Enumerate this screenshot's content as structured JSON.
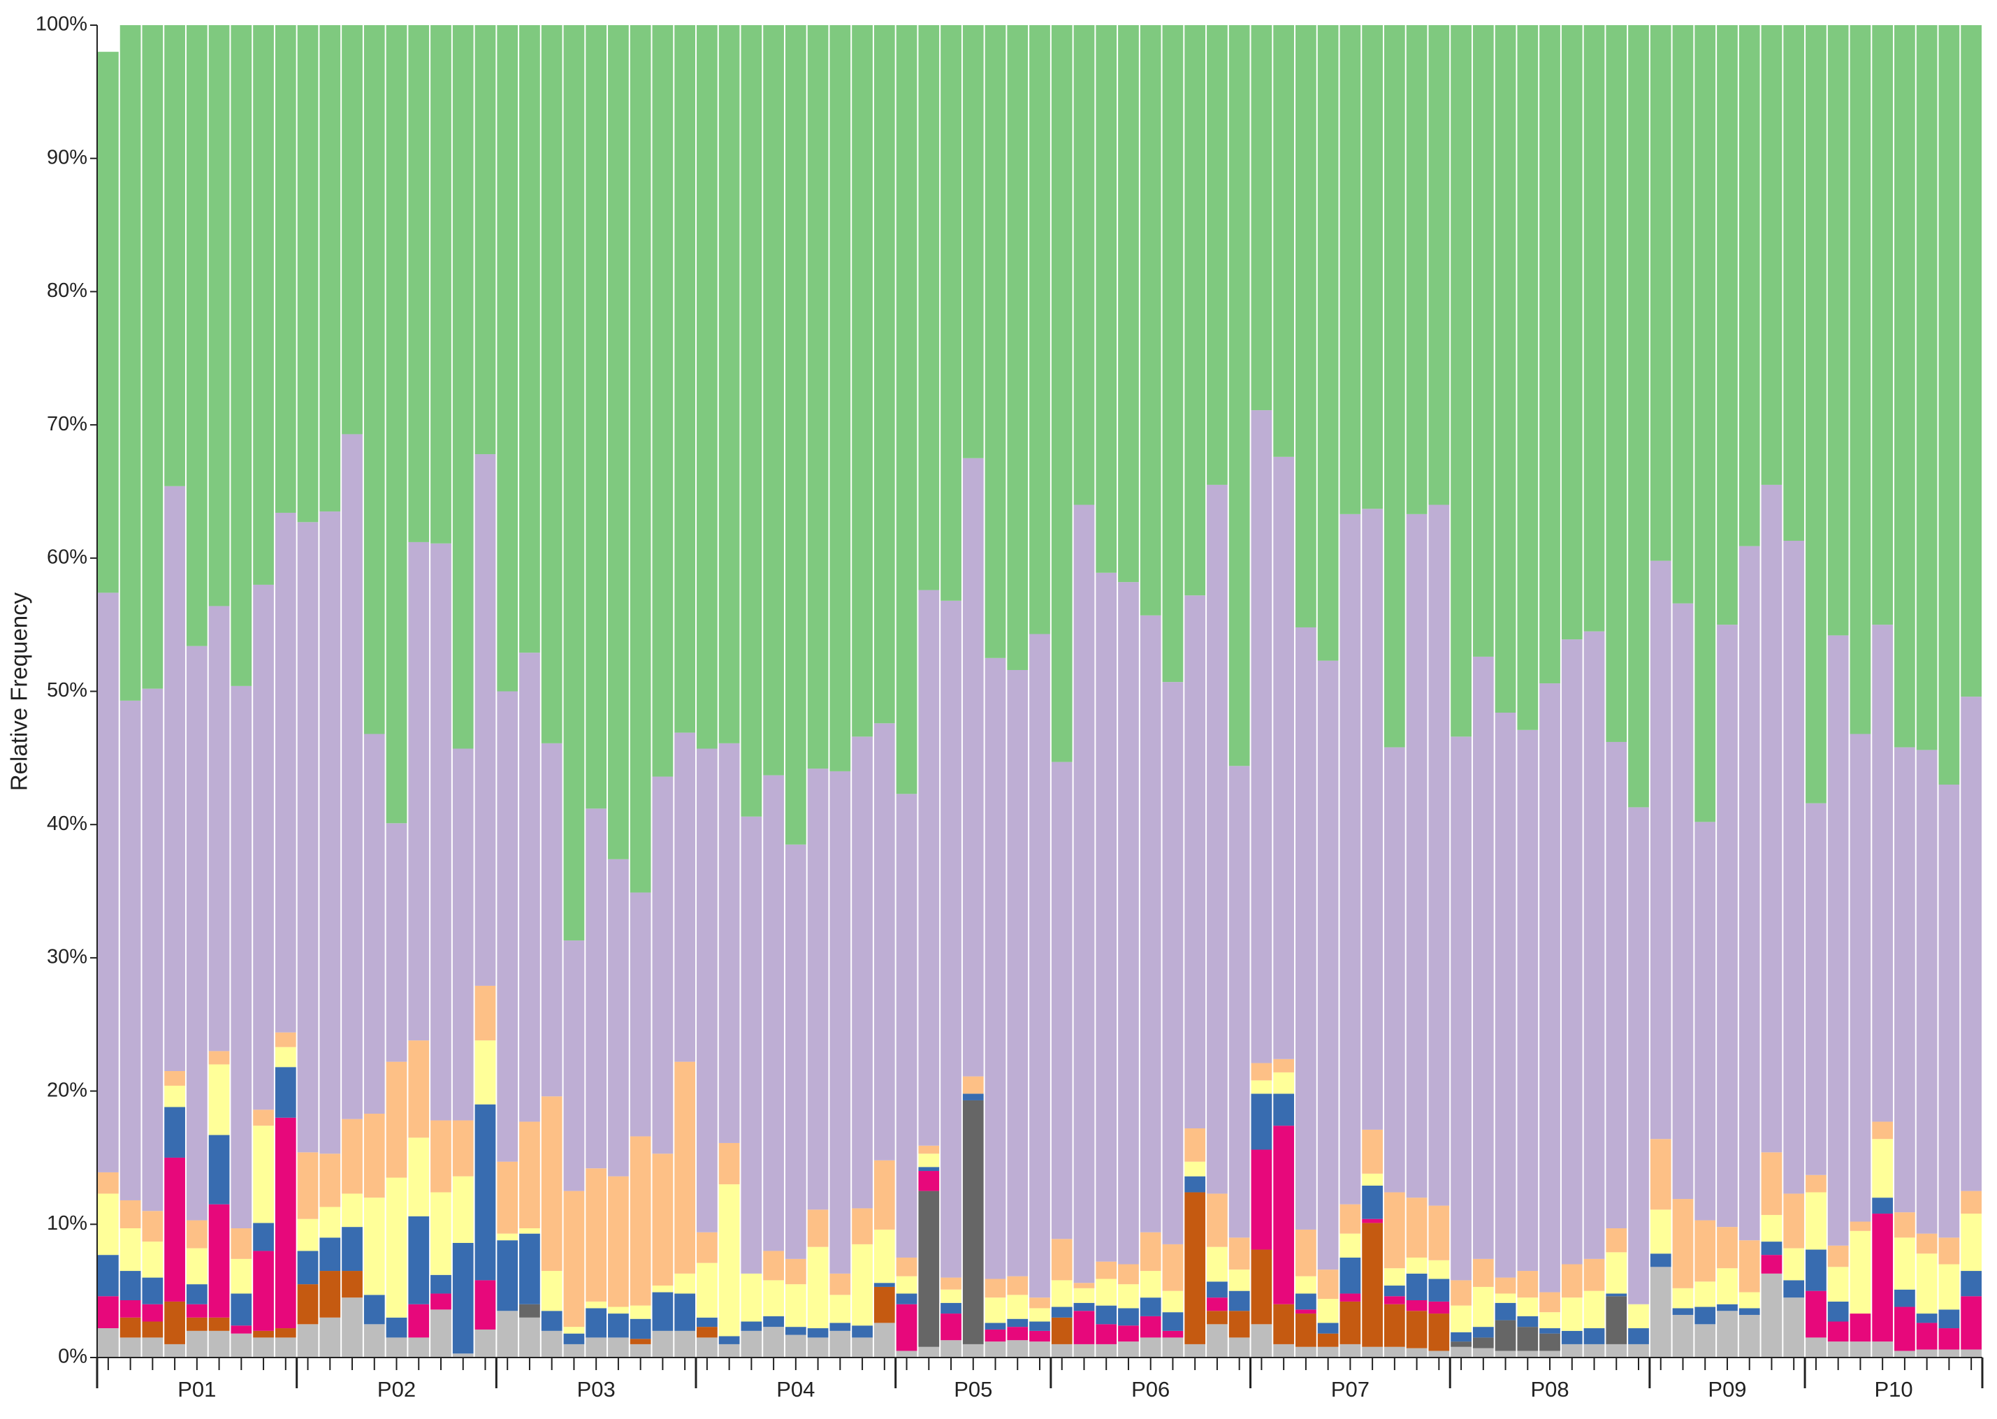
{
  "chart_data": {
    "type": "stacked_bar",
    "ylabel": "Relative Frequency",
    "ylim": [
      0,
      100
    ],
    "yticks": [
      {
        "value": 0,
        "label": "0%"
      },
      {
        "value": 10,
        "label": "10%"
      },
      {
        "value": 20,
        "label": "20%"
      },
      {
        "value": 30,
        "label": "30%"
      },
      {
        "value": 40,
        "label": "40%"
      },
      {
        "value": 50,
        "label": "50%"
      },
      {
        "value": 60,
        "label": "60%"
      },
      {
        "value": 70,
        "label": "70%"
      },
      {
        "value": 80,
        "label": "80%"
      },
      {
        "value": 90,
        "label": "90%"
      },
      {
        "value": 100,
        "label": "100%"
      }
    ],
    "groups": [
      {
        "label": "P01",
        "size": 9
      },
      {
        "label": "P02",
        "size": 9
      },
      {
        "label": "P03",
        "size": 9
      },
      {
        "label": "P04",
        "size": 9
      },
      {
        "label": "P05",
        "size": 7
      },
      {
        "label": "P06",
        "size": 9
      },
      {
        "label": "P07",
        "size": 9
      },
      {
        "label": "P08",
        "size": 9
      },
      {
        "label": "P09",
        "size": 7
      },
      {
        "label": "P10",
        "size": 8
      }
    ],
    "series": [
      {
        "color": "#bdbdbd",
        "values": [
          2.2,
          1.5,
          1.5,
          1.0,
          2.0,
          2.0,
          1.8,
          1.5,
          1.5,
          2.5,
          3.0,
          4.5,
          2.5,
          1.5,
          1.5,
          3.6,
          0.3,
          2.1,
          3.5,
          3.0,
          2.0,
          1.0,
          1.5,
          1.5,
          1.0,
          2.0,
          2.0,
          1.5,
          1.0,
          2.0,
          2.3,
          1.7,
          1.5,
          2.0,
          1.5,
          2.6,
          0.5,
          0.8,
          1.3,
          1.0,
          1.2,
          1.3,
          1.2,
          1.0,
          1.0,
          1.0,
          1.2,
          1.5,
          1.5,
          1.0,
          2.5,
          1.5,
          2.5,
          1.0,
          0.8,
          0.8,
          1.0,
          0.8,
          0.8,
          0.7,
          0.5,
          0.8,
          0.7,
          0.5,
          0.5,
          0.5,
          1.0,
          1.0,
          1.0,
          1.0,
          6.8,
          3.2,
          2.5,
          3.5,
          3.2,
          6.3,
          4.5,
          1.5,
          1.2,
          1.2,
          1.2,
          0.5,
          0.6,
          0.6,
          0.6
        ]
      },
      {
        "color": "#666666",
        "values": [
          0,
          0,
          0,
          0,
          0,
          0,
          0,
          0,
          0,
          0,
          0,
          0,
          0,
          0,
          0,
          0,
          0,
          0,
          0,
          1.0,
          0,
          0,
          0,
          0,
          0,
          0,
          0,
          0,
          0,
          0,
          0,
          0,
          0,
          0,
          0,
          0,
          0,
          11.7,
          0,
          18.3,
          0,
          0,
          0,
          0,
          0,
          0,
          0,
          0,
          0,
          0,
          0,
          0,
          0,
          0,
          0,
          0,
          0,
          0,
          0,
          0,
          0,
          0.4,
          0.8,
          2.3,
          1.8,
          1.3,
          0,
          0,
          3.6,
          0,
          0,
          0,
          0,
          0,
          0,
          0,
          0,
          0,
          0,
          0,
          0,
          0,
          0,
          0,
          0
        ]
      },
      {
        "color": "#c55a11",
        "values": [
          0,
          1.5,
          1.2,
          3.2,
          1.0,
          1.0,
          0,
          0.5,
          0.7,
          3.0,
          3.5,
          2.0,
          0,
          0,
          0,
          0,
          0,
          0,
          0,
          0,
          0,
          0,
          0,
          0,
          0.4,
          0,
          0,
          0.8,
          0,
          0,
          0,
          0,
          0,
          0,
          0,
          2.7,
          0,
          0,
          0,
          0,
          0,
          0,
          0,
          2.0,
          0,
          0,
          0,
          0,
          0,
          11.4,
          1.0,
          2.0,
          5.6,
          3.0,
          2.5,
          1.0,
          3.2,
          9.3,
          3.2,
          2.8,
          2.8,
          0,
          0,
          0,
          0,
          0,
          0,
          0,
          0,
          0,
          0,
          0,
          0,
          0,
          0,
          0,
          0,
          0,
          0,
          0,
          0,
          0,
          0,
          0,
          0
        ]
      },
      {
        "color": "#e7087b",
        "values": [
          2.4,
          1.3,
          1.3,
          10.8,
          1.0,
          8.5,
          0.6,
          6.0,
          15.8,
          0,
          0,
          0,
          0,
          0,
          2.5,
          1.2,
          0,
          3.7,
          0,
          0,
          0,
          0,
          0,
          0,
          0,
          0,
          0,
          0,
          0,
          0,
          0,
          0,
          0,
          0,
          0,
          0,
          3.5,
          1.5,
          2.0,
          0,
          0.9,
          1.0,
          0.8,
          0,
          2.5,
          1.5,
          1.2,
          1.6,
          0.5,
          0,
          1.0,
          0,
          7.5,
          13.4,
          0.3,
          0,
          0.6,
          0.3,
          0.6,
          0.8,
          0.9,
          0,
          0,
          0,
          0,
          0,
          0,
          0,
          0,
          0,
          0,
          0,
          0,
          0,
          0,
          1.4,
          0,
          3.5,
          1.5,
          2.1,
          9.6,
          3.3,
          2.0,
          1.6,
          4.0
        ]
      },
      {
        "color": "#386cb0",
        "values": [
          3.1,
          2.2,
          2.0,
          3.8,
          1.5,
          5.2,
          2.4,
          2.1,
          3.8,
          2.5,
          2.5,
          3.3,
          2.2,
          1.5,
          6.6,
          1.4,
          8.3,
          13.2,
          5.3,
          5.3,
          1.5,
          0.8,
          2.2,
          1.8,
          1.5,
          2.9,
          2.8,
          0.7,
          0.6,
          0.7,
          0.8,
          0.6,
          0.7,
          0.6,
          0.9,
          0.3,
          0.8,
          0.3,
          0.8,
          0.5,
          0.5,
          0.6,
          0.7,
          0.8,
          0.6,
          1.4,
          1.3,
          1.4,
          1.4,
          1.2,
          1.2,
          1.5,
          4.2,
          2.4,
          1.2,
          0.8,
          2.7,
          2.5,
          0.8,
          2.0,
          1.7,
          0.7,
          0.8,
          1.3,
          0.8,
          0.4,
          1.0,
          1.2,
          0.2,
          1.2,
          1.0,
          0.5,
          1.3,
          0.5,
          0.5,
          1.0,
          1.3,
          3.1,
          1.5,
          0,
          1.2,
          1.3,
          0.7,
          1.4,
          1.9
        ]
      },
      {
        "color": "#ffff99",
        "values": [
          4.6,
          3.2,
          2.7,
          1.6,
          2.7,
          5.3,
          2.6,
          7.3,
          1.5,
          2.4,
          2.3,
          2.5,
          7.3,
          10.5,
          5.9,
          6.2,
          5.0,
          4.8,
          0.5,
          0.4,
          3.0,
          0.5,
          0.5,
          0.5,
          1.0,
          0.5,
          1.5,
          4.1,
          11.4,
          3.6,
          2.7,
          3.2,
          6.1,
          2.1,
          6.1,
          4.0,
          1.3,
          1.0,
          1.0,
          0,
          1.9,
          1.8,
          1.0,
          2.0,
          1.1,
          2.0,
          1.8,
          2.0,
          1.6,
          1.1,
          2.6,
          1.6,
          1.0,
          1.6,
          1.3,
          1.8,
          1.8,
          0.9,
          1.3,
          1.2,
          1.4,
          2.0,
          3.0,
          0.7,
          1.4,
          1.2,
          2.5,
          2.8,
          3.1,
          1.8,
          3.3,
          1.5,
          1.9,
          2.7,
          1.2,
          2.0,
          2.4,
          4.3,
          2.6,
          6.2,
          4.4,
          3.9,
          4.5,
          3.4,
          4.3
        ]
      },
      {
        "color": "#fdc086",
        "values": [
          1.6,
          2.1,
          2.3,
          1.1,
          2.1,
          1.0,
          2.3,
          1.2,
          1.1,
          5.0,
          4.0,
          5.6,
          6.3,
          8.7,
          7.3,
          5.4,
          4.2,
          4.1,
          5.4,
          8.0,
          13.1,
          10.2,
          10.0,
          9.8,
          12.7,
          9.9,
          15.9,
          2.3,
          3.1,
          0,
          2.2,
          1.9,
          2.8,
          1.6,
          2.7,
          5.2,
          1.4,
          0.6,
          0.9,
          1.3,
          1.4,
          1.4,
          0.8,
          3.1,
          0.4,
          1.3,
          1.5,
          2.9,
          3.5,
          2.5,
          4.0,
          2.4,
          1.3,
          1.0,
          3.5,
          2.2,
          2.2,
          3.3,
          5.7,
          4.5,
          4.1,
          1.9,
          2.1,
          1.2,
          2.0,
          1.5,
          2.5,
          2.4,
          1.8,
          0,
          5.3,
          6.7,
          4.6,
          3.1,
          3.9,
          4.7,
          4.1,
          1.3,
          1.6,
          0.7,
          1.3,
          1.9,
          1.5,
          2.0,
          1.7
        ]
      },
      {
        "color": "#beaed4",
        "values": [
          43.5,
          37.5,
          39.2,
          43.9,
          43.1,
          33.4,
          40.7,
          39.4,
          39.0,
          47.3,
          48.2,
          51.4,
          28.5,
          17.9,
          37.4,
          43.3,
          27.9,
          39.9,
          35.3,
          35.2,
          26.5,
          18.8,
          27.0,
          23.8,
          18.3,
          28.3,
          24.7,
          36.3,
          30.0,
          34.3,
          35.7,
          31.1,
          33.1,
          37.7,
          35.4,
          32.8,
          34.8,
          41.7,
          50.8,
          46.4,
          46.6,
          45.5,
          49.8,
          35.8,
          58.4,
          51.7,
          51.2,
          46.3,
          42.2,
          40.0,
          53.2,
          35.4,
          49.0,
          45.2,
          45.2,
          45.7,
          51.8,
          46.6,
          33.4,
          51.3,
          52.6,
          40.8,
          45.2,
          42.4,
          40.6,
          45.7,
          46.9,
          47.1,
          36.5,
          37.3,
          43.4,
          44.7,
          29.9,
          45.2,
          52.1,
          50.1,
          49.0,
          27.9,
          45.8,
          36.6,
          37.3,
          34.9,
          36.3,
          34.0,
          37.1
        ]
      },
      {
        "color": "#7fc97f",
        "values": [
          40.6,
          50.7,
          49.8,
          34.6,
          46.6,
          43.6,
          49.6,
          42.0,
          36.6,
          37.3,
          36.5,
          30.7,
          53.2,
          59.9,
          38.8,
          38.9,
          54.3,
          32.2,
          50.0,
          47.1,
          53.9,
          68.7,
          58.8,
          62.6,
          65.1,
          56.4,
          53.1,
          54.3,
          53.9,
          59.4,
          56.3,
          61.5,
          55.8,
          56.0,
          53.4,
          52.4,
          57.7,
          42.4,
          43.2,
          32.5,
          47.5,
          48.4,
          45.7,
          55.3,
          36.0,
          41.1,
          41.8,
          44.3,
          49.3,
          42.8,
          34.5,
          55.6,
          28.9,
          32.4,
          45.2,
          47.7,
          36.7,
          36.3,
          54.2,
          36.7,
          36.0,
          53.4,
          47.4,
          51.6,
          52.9,
          49.4,
          46.1,
          45.5,
          53.8,
          58.7,
          40.2,
          43.4,
          59.8,
          45.0,
          39.1,
          34.5,
          38.7,
          58.4,
          45.8,
          53.2,
          45.0,
          54.2,
          54.4,
          57.0,
          50.4
        ]
      }
    ]
  }
}
